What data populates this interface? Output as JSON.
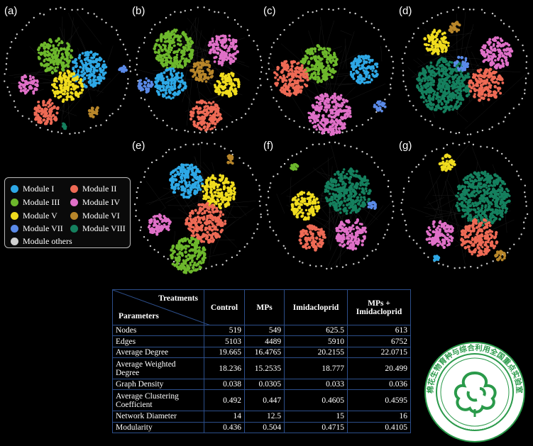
{
  "panels": [
    {
      "label": "(a)",
      "modules": [
        "blue",
        "green",
        "yellow",
        "lightblue",
        "salmon",
        "pink",
        "brown",
        "teal"
      ]
    },
    {
      "label": "(b)",
      "modules": [
        "green",
        "blue",
        "brown",
        "yellow",
        "salmon",
        "pink",
        "lightblue"
      ]
    },
    {
      "label": "(c)",
      "modules": [
        "green",
        "blue",
        "salmon",
        "pink",
        "lightblue"
      ]
    },
    {
      "label": "(d)",
      "modules": [
        "teal",
        "salmon",
        "pink",
        "yellow",
        "brown",
        "lightblue"
      ]
    },
    {
      "label": "(e)",
      "modules": [
        "blue",
        "yellow",
        "salmon",
        "pink",
        "green",
        "brown"
      ]
    },
    {
      "label": "(f)",
      "modules": [
        "teal",
        "yellow",
        "salmon",
        "pink",
        "green",
        "lightblue"
      ]
    },
    {
      "label": "(g)",
      "modules": [
        "teal",
        "salmon",
        "pink",
        "yellow",
        "brown",
        "blue"
      ]
    }
  ],
  "colors": {
    "blue": "#2ea8e6",
    "salmon": "#ee6a55",
    "green": "#6db82c",
    "pink": "#e070c8",
    "yellow": "#f0dc1e",
    "brown": "#b8862a",
    "lightblue": "#5a8ae8",
    "teal": "#15805e",
    "grey": "#d0d0d0"
  },
  "legend": [
    {
      "label": "Module I",
      "color": "#2ea8e6"
    },
    {
      "label": "Module II",
      "color": "#ee6a55"
    },
    {
      "label": "Module III",
      "color": "#6db82c"
    },
    {
      "label": "Module IV",
      "color": "#e070c8"
    },
    {
      "label": "Module V",
      "color": "#f0dc1e"
    },
    {
      "label": "Module VI",
      "color": "#b8862a"
    },
    {
      "label": "Module VII",
      "color": "#5a8ae8"
    },
    {
      "label": "Module VIII",
      "color": "#15805e"
    },
    {
      "label": "Module others",
      "color": "#d0d0d0"
    }
  ],
  "table": {
    "header_treatments": "Treatments",
    "header_parameters": "Parameters",
    "columns": [
      "Control",
      "MPs",
      "Imidacloprid",
      "MPs +\nImidacloprid"
    ],
    "rows": [
      {
        "name": "Nodes",
        "values": [
          "519",
          "549",
          "625.5",
          "613"
        ]
      },
      {
        "name": "Edges",
        "values": [
          "5103",
          "4489",
          "5910",
          "6752"
        ]
      },
      {
        "name": "Average Degree",
        "values": [
          "19.665",
          "16.4765",
          "20.2155",
          "22.0715"
        ]
      },
      {
        "name": "Average Weighted Degree",
        "values": [
          "18.236",
          "15.2535",
          "18.777",
          "20.499"
        ]
      },
      {
        "name": "Graph Density",
        "values": [
          "0.038",
          "0.0305",
          "0.033",
          "0.036"
        ]
      },
      {
        "name": "Average Clustering Coefficient",
        "values": [
          "0.492",
          "0.447",
          "0.4605",
          "0.4595"
        ]
      },
      {
        "name": "Network Diameter",
        "values": [
          "14",
          "12.5",
          "15",
          "16"
        ]
      },
      {
        "name": "Modularity",
        "values": [
          "0.436",
          "0.504",
          "0.4715",
          "0.4105"
        ]
      }
    ]
  },
  "logo": {
    "text": "棉花生物育种与综合利用全国重点实验室"
  }
}
